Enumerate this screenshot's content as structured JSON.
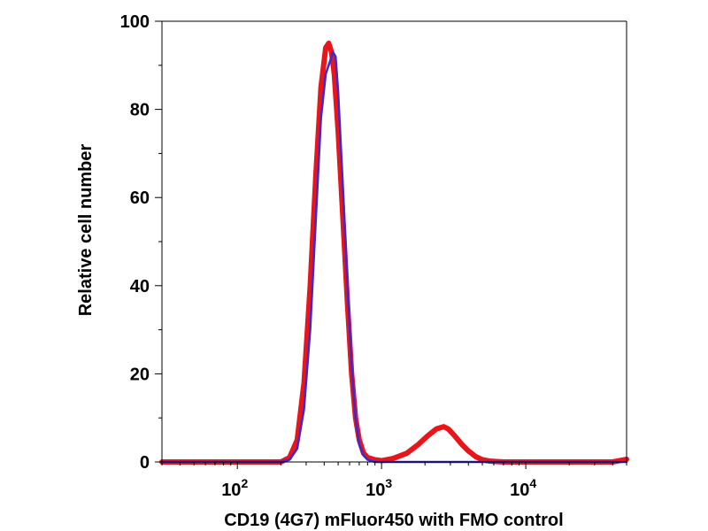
{
  "chart_data": {
    "type": "line",
    "title": "",
    "xlabel": "CD19 (4G7) mFluor450 with FMO control",
    "ylabel": "Relative cell number",
    "x_scale": "log",
    "xlim": [
      30,
      50000
    ],
    "ylim": [
      0,
      100
    ],
    "x_ticks": [
      {
        "value": 100,
        "base": "10",
        "exp": "2"
      },
      {
        "value": 1000,
        "base": "10",
        "exp": "3"
      },
      {
        "value": 10000,
        "base": "10",
        "exp": "4"
      }
    ],
    "y_ticks": [
      0,
      20,
      40,
      60,
      80,
      100
    ],
    "grid": false,
    "legend": "none",
    "series": [
      {
        "color": "#e8161b",
        "x": [
          30,
          150,
          200,
          230,
          260,
          290,
          320,
          350,
          380,
          410,
          430,
          450,
          470,
          500,
          540,
          580,
          620,
          660,
          700,
          750,
          800,
          900,
          1000,
          1200,
          1500,
          1800,
          2100,
          2400,
          2700,
          2900,
          3200,
          3600,
          4000,
          4500,
          5000,
          5600,
          7000,
          10000,
          20000,
          40000,
          50000
        ],
        "values": [
          0,
          0,
          0,
          1,
          5,
          18,
          40,
          65,
          85,
          94,
          95,
          93,
          88,
          75,
          55,
          36,
          20,
          10,
          5,
          2,
          1,
          0.5,
          0.3,
          0.8,
          2,
          4,
          6,
          7.5,
          8,
          7.5,
          6,
          4,
          2.5,
          1.2,
          0.5,
          0.2,
          0,
          0,
          0,
          0,
          0.6
        ]
      },
      {
        "color": "#3a2ad0",
        "x": [
          30,
          150,
          200,
          230,
          260,
          290,
          320,
          350,
          380,
          410,
          440,
          460,
          480,
          500,
          540,
          580,
          620,
          660,
          700,
          750,
          800,
          900,
          1000,
          2000,
          10000,
          50000
        ],
        "values": [
          0,
          0,
          0,
          0.5,
          3,
          12,
          30,
          55,
          78,
          88,
          91,
          93,
          92,
          84,
          62,
          40,
          22,
          10,
          4,
          1.5,
          0.5,
          0,
          0,
          0,
          0,
          0
        ]
      }
    ]
  }
}
